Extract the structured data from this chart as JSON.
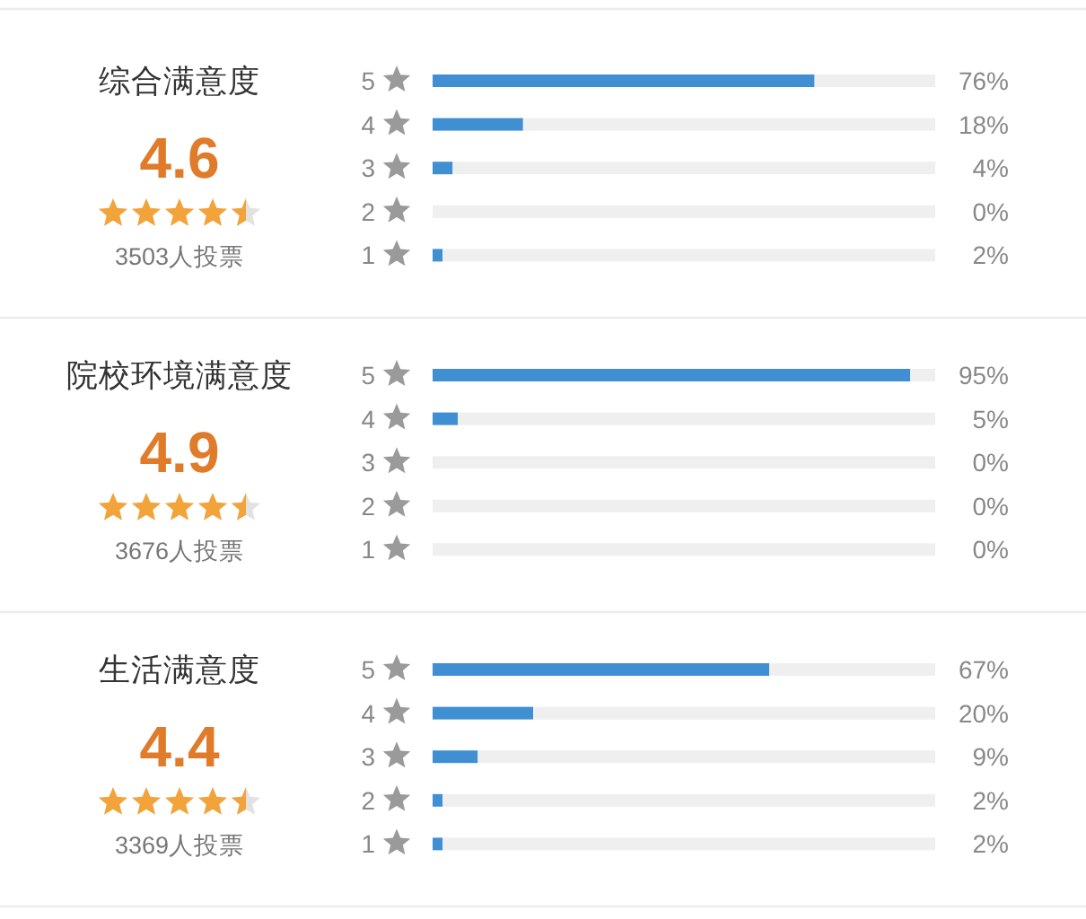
{
  "chart_data": [
    {
      "type": "bar",
      "orientation": "horizontal",
      "stacked": true,
      "title": "综合满意度",
      "subtitle": "4.6",
      "annotations": [
        "3503人投票"
      ],
      "categories": [
        "5",
        "4",
        "3",
        "2",
        "1"
      ],
      "series": [
        {
          "color": "#3f8fd2",
          "values": [
            76,
            18,
            4,
            0,
            2
          ],
          "value_labels": [
            "76%",
            "18%",
            "4%",
            "0%",
            "2%"
          ]
        },
        {
          "color": "#efefef",
          "values": [
            24,
            82,
            96,
            100,
            98
          ]
        }
      ],
      "xlim": [
        0,
        100
      ]
    },
    {
      "type": "bar",
      "orientation": "horizontal",
      "stacked": true,
      "title": "院校环境满意度",
      "subtitle": "4.9",
      "annotations": [
        "3676人投票"
      ],
      "categories": [
        "5",
        "4",
        "3",
        "2",
        "1"
      ],
      "series": [
        {
          "color": "#3f8fd2",
          "values": [
            95,
            5,
            0,
            0,
            0
          ],
          "value_labels": [
            "95%",
            "5%",
            "0%",
            "0%",
            "0%"
          ]
        },
        {
          "color": "#efefef",
          "values": [
            5,
            95,
            100,
            100,
            100
          ]
        }
      ],
      "xlim": [
        0,
        100
      ]
    },
    {
      "type": "bar",
      "orientation": "horizontal",
      "stacked": true,
      "title": "生活满意度",
      "subtitle": "4.4",
      "annotations": [
        "3369人投票"
      ],
      "categories": [
        "5",
        "4",
        "3",
        "2",
        "1"
      ],
      "series": [
        {
          "color": "#3f8fd2",
          "values": [
            67,
            20,
            9,
            2,
            2
          ],
          "value_labels": [
            "67%",
            "20%",
            "9%",
            "2%",
            "2%"
          ]
        },
        {
          "color": "#efefef",
          "values": [
            33,
            80,
            91,
            98,
            98
          ]
        }
      ],
      "xlim": [
        0,
        100
      ]
    }
  ]
}
